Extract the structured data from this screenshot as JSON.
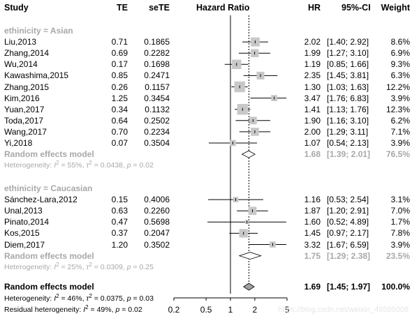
{
  "chart_data": {
    "type": "forest",
    "headers": {
      "study": "Study",
      "te": "TE",
      "sete": "seTE",
      "effect": "Hazard Ratio",
      "hr": "HR",
      "ci": "95%-CI",
      "weight": "Weight"
    },
    "x_axis": {
      "scale": "log",
      "ticks": [
        0.2,
        0.5,
        1,
        2,
        5
      ],
      "tick_labels": [
        "0.2",
        "0.5",
        "1",
        "2",
        "5"
      ],
      "null_value": 1,
      "overall_value": 1.69
    },
    "groups": [
      {
        "label": "ethinicity = Asian",
        "studies": [
          {
            "name": "Liu,2013",
            "te": "0.71",
            "sete": "0.1865",
            "hr": 2.02,
            "lo": 1.4,
            "hi": 2.92,
            "hr_text": "2.02",
            "ci_text": "[1.40; 2.92]",
            "weight_text": "8.6%",
            "weight": 8.6
          },
          {
            "name": "Zhang,2014",
            "te": "0.69",
            "sete": "0.2282",
            "hr": 1.99,
            "lo": 1.27,
            "hi": 3.1,
            "hr_text": "1.99",
            "ci_text": "[1.27; 3.10]",
            "weight_text": "6.9%",
            "weight": 6.9
          },
          {
            "name": "Wu,2014",
            "te": "0.17",
            "sete": "0.1698",
            "hr": 1.19,
            "lo": 0.85,
            "hi": 1.66,
            "hr_text": "1.19",
            "ci_text": "[0.85; 1.66]",
            "weight_text": "9.3%",
            "weight": 9.3
          },
          {
            "name": "Kawashima,2015",
            "te": "0.85",
            "sete": "0.2471",
            "hr": 2.35,
            "lo": 1.45,
            "hi": 3.81,
            "hr_text": "2.35",
            "ci_text": "[1.45; 3.81]",
            "weight_text": "6.3%",
            "weight": 6.3
          },
          {
            "name": "Zhang,2015",
            "te": "0.26",
            "sete": "0.1157",
            "hr": 1.3,
            "lo": 1.03,
            "hi": 1.63,
            "hr_text": "1.30",
            "ci_text": "[1.03; 1.63]",
            "weight_text": "12.2%",
            "weight": 12.2
          },
          {
            "name": "Kim,2016",
            "te": "1.25",
            "sete": "0.3454",
            "hr": 3.47,
            "lo": 1.76,
            "hi": 6.83,
            "hr_text": "3.47",
            "ci_text": "[1.76; 6.83]",
            "weight_text": "3.9%",
            "weight": 3.9
          },
          {
            "name": "Yuan,2017",
            "te": "0.34",
            "sete": "0.1132",
            "hr": 1.41,
            "lo": 1.13,
            "hi": 1.76,
            "hr_text": "1.41",
            "ci_text": "[1.13; 1.76]",
            "weight_text": "12.3%",
            "weight": 12.3
          },
          {
            "name": "Toda,2017",
            "te": "0.64",
            "sete": "0.2502",
            "hr": 1.9,
            "lo": 1.16,
            "hi": 3.1,
            "hr_text": "1.90",
            "ci_text": "[1.16; 3.10]",
            "weight_text": "6.2%",
            "weight": 6.2
          },
          {
            "name": "Wang,2017",
            "te": "0.70",
            "sete": "0.2234",
            "hr": 2.0,
            "lo": 1.29,
            "hi": 3.11,
            "hr_text": "2.00",
            "ci_text": "[1.29; 3.11]",
            "weight_text": "7.1%",
            "weight": 7.1
          },
          {
            "name": "Yi,2018",
            "te": "0.07",
            "sete": "0.3504",
            "hr": 1.07,
            "lo": 0.54,
            "hi": 2.13,
            "hr_text": "1.07",
            "ci_text": "[0.54; 2.13]",
            "weight_text": "3.9%",
            "weight": 3.9
          }
        ],
        "pooled": {
          "label": "Random effects model",
          "hr": 1.68,
          "lo": 1.39,
          "hi": 2.01,
          "hr_text": "1.68",
          "ci_text": "[1.39; 2.01]",
          "weight_text": "76.5%"
        },
        "heterogeneity": {
          "prefix": "Heterogeneity: ",
          "i2_sym": "I",
          "i2_sup": "2",
          "i2_val": " = 55%, ",
          "tau_sym": "τ",
          "tau_sup": "2",
          "tau_val": " = 0.0438, ",
          "p_sym": "p",
          "p_val": " = 0.02"
        }
      },
      {
        "label": "ethinicity = Caucasian",
        "studies": [
          {
            "name": "Sánchez-Lara,2012",
            "te": "0.15",
            "sete": "0.4006",
            "hr": 1.16,
            "lo": 0.53,
            "hi": 2.54,
            "hr_text": "1.16",
            "ci_text": "[0.53; 2.54]",
            "weight_text": "3.1%",
            "weight": 3.1
          },
          {
            "name": "Unal,2013",
            "te": "0.63",
            "sete": "0.2260",
            "hr": 1.87,
            "lo": 1.2,
            "hi": 2.91,
            "hr_text": "1.87",
            "ci_text": "[1.20; 2.91]",
            "weight_text": "7.0%",
            "weight": 7.0
          },
          {
            "name": "Pinato,2014",
            "te": "0.47",
            "sete": "0.5698",
            "hr": 1.6,
            "lo": 0.52,
            "hi": 4.89,
            "hr_text": "1.60",
            "ci_text": "[0.52; 4.89]",
            "weight_text": "1.7%",
            "weight": 1.7
          },
          {
            "name": "Kos,2015",
            "te": "0.37",
            "sete": "0.2047",
            "hr": 1.45,
            "lo": 0.97,
            "hi": 2.17,
            "hr_text": "1.45",
            "ci_text": "[0.97; 2.17]",
            "weight_text": "7.8%",
            "weight": 7.8
          },
          {
            "name": "Diem,2017",
            "te": "1.20",
            "sete": "0.3502",
            "hr": 3.32,
            "lo": 1.67,
            "hi": 6.59,
            "hr_text": "3.32",
            "ci_text": "[1.67; 6.59]",
            "weight_text": "3.9%",
            "weight": 3.9
          }
        ],
        "pooled": {
          "label": "Random effects model",
          "hr": 1.75,
          "lo": 1.29,
          "hi": 2.38,
          "hr_text": "1.75",
          "ci_text": "[1.29; 2.38]",
          "weight_text": "23.5%"
        },
        "heterogeneity": {
          "prefix": "Heterogeneity: ",
          "i2_sym": "I",
          "i2_sup": "2",
          "i2_val": " = 25%, ",
          "tau_sym": "τ",
          "tau_sup": "2",
          "tau_val": " = 0.0309, ",
          "p_sym": "p",
          "p_val": " = 0.25"
        }
      }
    ],
    "overall": {
      "label": "Random effects model",
      "hr": 1.69,
      "lo": 1.45,
      "hi": 1.97,
      "hr_text": "1.69",
      "ci_text": "[1.45; 1.97]",
      "weight_text": "100.0%",
      "heterogeneity": {
        "prefix": "Heterogeneity: ",
        "i2_sym": "I",
        "i2_sup": "2",
        "i2_val": " = 46%, ",
        "tau_sym": "τ",
        "tau_sup": "2",
        "tau_val": " = 0.0375, ",
        "p_sym": "p",
        "p_val": " = 0.03"
      },
      "residual": {
        "prefix": "Residual heterogeneity: ",
        "i2_sym": "I",
        "i2_sup": "2",
        "i2_val": " = 49%, ",
        "p_sym": "p",
        "p_val": " = 0.02"
      }
    },
    "watermark": "https://blog.csdn.net/weixin_46585008"
  }
}
